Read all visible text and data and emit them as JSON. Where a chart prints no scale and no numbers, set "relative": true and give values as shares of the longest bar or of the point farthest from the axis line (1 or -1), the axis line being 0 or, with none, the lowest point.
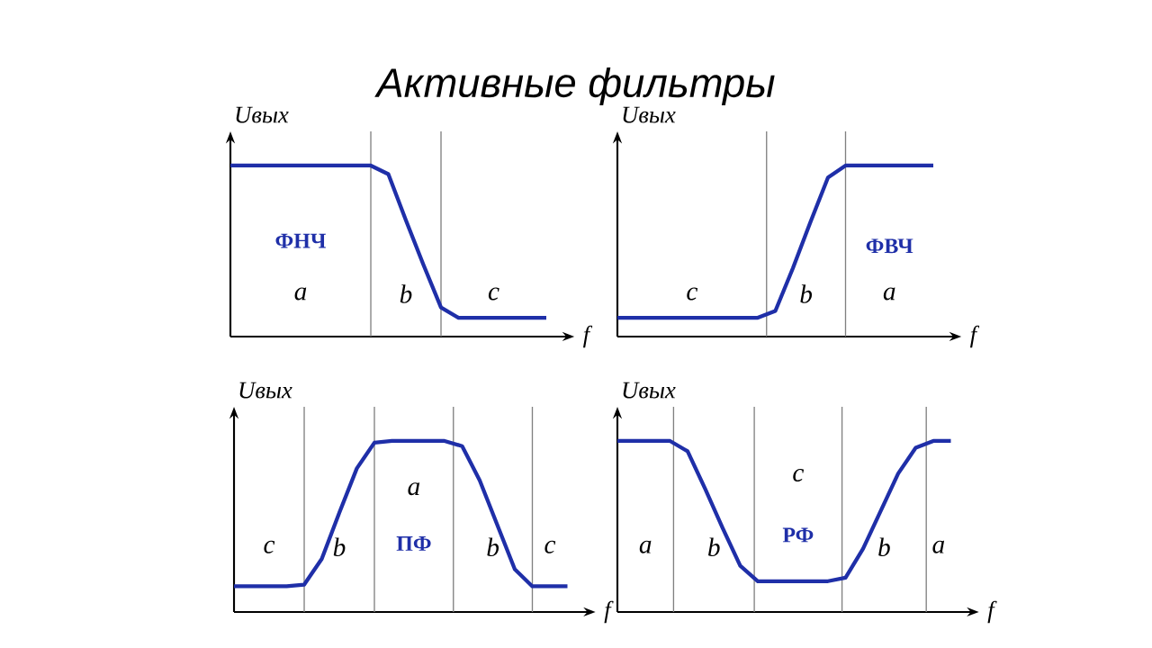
{
  "chart_data": [
    {
      "type": "line",
      "title": "Активные фильтры",
      "relative": true,
      "xlabel": "f",
      "ylabel": "Uвых",
      "categories": [
        null,
        null,
        null,
        null,
        null,
        null,
        null,
        null,
        null,
        null,
        null,
        null,
        null,
        null,
        null,
        null,
        null,
        null,
        null
      ],
      "series": [
        {
          "color": "#1f2fa8",
          "values": [
            1,
            1,
            1,
            1,
            1,
            1,
            1,
            1,
            1,
            0.95,
            0.68,
            0.42,
            0.17,
            0.11,
            0.11,
            0.11,
            0.11,
            0.11,
            0.11
          ]
        }
      ],
      "grid": "x",
      "annotations": [
        "a",
        "b",
        "c",
        "ФНЧ"
      ]
    },
    {
      "type": "line",
      "relative": true,
      "xlabel": "f",
      "ylabel": "Uвых",
      "categories": [
        null,
        null,
        null,
        null,
        null,
        null,
        null,
        null,
        null,
        null,
        null,
        null,
        null,
        null,
        null,
        null,
        null,
        null,
        null
      ],
      "series": [
        {
          "color": "#1f2fa8",
          "values": [
            0.11,
            0.11,
            0.11,
            0.11,
            0.11,
            0.11,
            0.11,
            0.11,
            0.11,
            0.15,
            0.4,
            0.67,
            0.93,
            1,
            1,
            1,
            1,
            1,
            1
          ]
        }
      ],
      "grid": "x",
      "annotations": [
        "c",
        "b",
        "a",
        "ФВЧ"
      ]
    },
    {
      "type": "line",
      "relative": true,
      "xlabel": "f",
      "ylabel": "Uвых",
      "categories": [
        null,
        null,
        null,
        null,
        null,
        null,
        null,
        null,
        null,
        null,
        null,
        null,
        null,
        null,
        null,
        null,
        null,
        null,
        null,
        null
      ],
      "series": [
        {
          "color": "#1f2fa8",
          "values": [
            0.15,
            0.15,
            0.15,
            0.15,
            0.16,
            0.31,
            0.58,
            0.84,
            0.99,
            1,
            1,
            1,
            1,
            0.97,
            0.77,
            0.51,
            0.25,
            0.15,
            0.15,
            0.15
          ]
        }
      ],
      "grid": "x",
      "annotations": [
        "c",
        "b",
        "a",
        "b",
        "c",
        "ПФ"
      ]
    },
    {
      "type": "line",
      "relative": true,
      "xlabel": "f",
      "ylabel": "Uвых",
      "categories": [
        null,
        null,
        null,
        null,
        null,
        null,
        null,
        null,
        null,
        null,
        null,
        null,
        null,
        null,
        null,
        null,
        null,
        null,
        null,
        null
      ],
      "series": [
        {
          "color": "#1f2fa8",
          "values": [
            1,
            1,
            1,
            1,
            0.94,
            0.72,
            0.49,
            0.27,
            0.18,
            0.18,
            0.18,
            0.18,
            0.18,
            0.2,
            0.37,
            0.59,
            0.81,
            0.96,
            1,
            1
          ]
        }
      ],
      "grid": "x",
      "annotations": [
        "a",
        "b",
        "c",
        "b",
        "a",
        "РФ"
      ]
    }
  ]
}
